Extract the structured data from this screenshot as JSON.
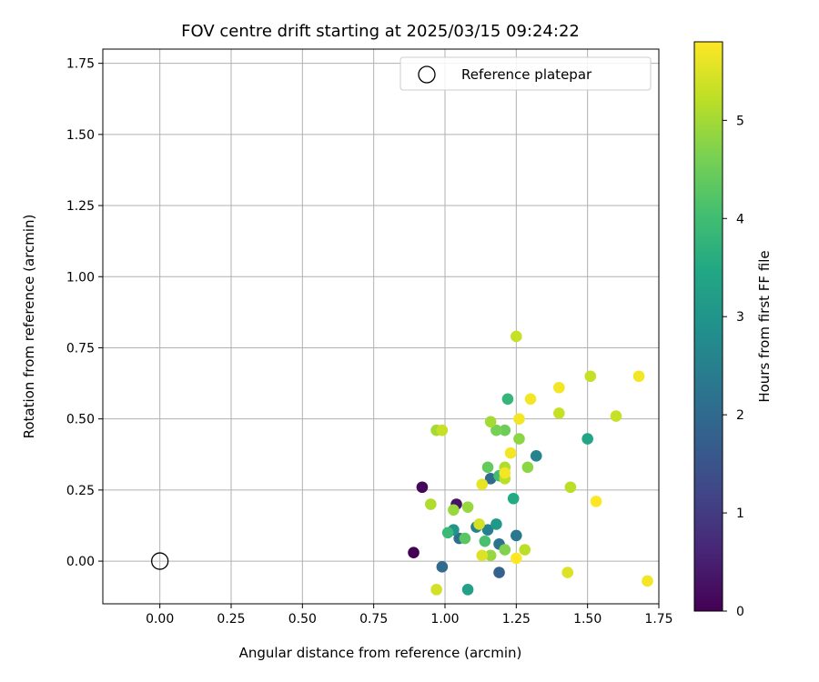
{
  "chart_data": {
    "type": "scatter",
    "title": "FOV centre drift starting at 2025/03/15 09:24:22",
    "xlabel": "Angular distance from reference (arcmin)",
    "ylabel": "Rotation from reference (arcmin)",
    "xlim": [
      -0.2,
      1.75
    ],
    "ylim": [
      -0.15,
      1.8
    ],
    "xticks": [
      "0.00",
      "0.25",
      "0.50",
      "0.75",
      "1.00",
      "1.25",
      "1.50",
      "1.75"
    ],
    "yticks": [
      "0.00",
      "0.25",
      "0.50",
      "0.75",
      "1.00",
      "1.25",
      "1.50",
      "1.75"
    ],
    "grid": true,
    "legend": {
      "placement": "top-right",
      "entries": [
        "Reference platepar"
      ]
    },
    "reference_point": {
      "x": 0.0,
      "y": 0.0,
      "label": "Reference platepar"
    },
    "colorbar": {
      "label": "Hours from first FF file",
      "colormap": "viridis",
      "range": [
        0,
        5.8
      ],
      "ticks": [
        "0",
        "1",
        "2",
        "3",
        "4",
        "5"
      ]
    },
    "points": [
      {
        "x": 0.89,
        "y": 0.03,
        "h": 0.0
      },
      {
        "x": 0.92,
        "y": 0.26,
        "h": 0.1
      },
      {
        "x": 1.04,
        "y": 0.2,
        "h": 0.3
      },
      {
        "x": 1.19,
        "y": -0.04,
        "h": 1.8
      },
      {
        "x": 0.99,
        "y": -0.02,
        "h": 2.0
      },
      {
        "x": 1.05,
        "y": 0.08,
        "h": 2.1
      },
      {
        "x": 1.16,
        "y": 0.29,
        "h": 2.0
      },
      {
        "x": 1.19,
        "y": 0.06,
        "h": 2.2
      },
      {
        "x": 1.25,
        "y": 0.09,
        "h": 2.3
      },
      {
        "x": 1.11,
        "y": 0.12,
        "h": 2.5
      },
      {
        "x": 1.15,
        "y": 0.11,
        "h": 2.5
      },
      {
        "x": 1.32,
        "y": 0.37,
        "h": 2.6
      },
      {
        "x": 1.03,
        "y": 0.11,
        "h": 3.0
      },
      {
        "x": 1.18,
        "y": 0.13,
        "h": 3.1
      },
      {
        "x": 1.08,
        "y": -0.1,
        "h": 3.3
      },
      {
        "x": 1.5,
        "y": 0.43,
        "h": 3.4
      },
      {
        "x": 1.24,
        "y": 0.22,
        "h": 3.5
      },
      {
        "x": 1.22,
        "y": 0.57,
        "h": 3.8
      },
      {
        "x": 1.01,
        "y": 0.1,
        "h": 3.9
      },
      {
        "x": 1.19,
        "y": 0.3,
        "h": 4.0
      },
      {
        "x": 1.14,
        "y": 0.07,
        "h": 4.1
      },
      {
        "x": 1.07,
        "y": 0.08,
        "h": 4.3
      },
      {
        "x": 1.15,
        "y": 0.33,
        "h": 4.4
      },
      {
        "x": 1.21,
        "y": 0.46,
        "h": 4.5
      },
      {
        "x": 1.18,
        "y": 0.46,
        "h": 4.6
      },
      {
        "x": 1.26,
        "y": 0.43,
        "h": 4.8
      },
      {
        "x": 1.29,
        "y": 0.33,
        "h": 4.8
      },
      {
        "x": 1.21,
        "y": 0.04,
        "h": 4.7
      },
      {
        "x": 1.16,
        "y": 0.02,
        "h": 4.9
      },
      {
        "x": 1.03,
        "y": 0.18,
        "h": 4.9
      },
      {
        "x": 1.08,
        "y": 0.19,
        "h": 4.9
      },
      {
        "x": 1.16,
        "y": 0.49,
        "h": 5.0
      },
      {
        "x": 0.97,
        "y": 0.46,
        "h": 5.0
      },
      {
        "x": 0.95,
        "y": 0.2,
        "h": 5.1
      },
      {
        "x": 1.21,
        "y": 0.33,
        "h": 5.1
      },
      {
        "x": 1.21,
        "y": 0.29,
        "h": 5.2
      },
      {
        "x": 1.28,
        "y": 0.04,
        "h": 5.2
      },
      {
        "x": 1.44,
        "y": 0.26,
        "h": 5.2
      },
      {
        "x": 1.4,
        "y": 0.52,
        "h": 5.3
      },
      {
        "x": 1.51,
        "y": 0.65,
        "h": 5.3
      },
      {
        "x": 1.6,
        "y": 0.51,
        "h": 5.3
      },
      {
        "x": 1.25,
        "y": 0.79,
        "h": 5.3
      },
      {
        "x": 0.99,
        "y": 0.46,
        "h": 5.3
      },
      {
        "x": 0.97,
        "y": -0.1,
        "h": 5.4
      },
      {
        "x": 1.12,
        "y": 0.13,
        "h": 5.4
      },
      {
        "x": 1.13,
        "y": 0.02,
        "h": 5.5
      },
      {
        "x": 1.43,
        "y": -0.04,
        "h": 5.5
      },
      {
        "x": 1.13,
        "y": 0.27,
        "h": 5.6
      },
      {
        "x": 1.21,
        "y": 0.31,
        "h": 5.7
      },
      {
        "x": 1.23,
        "y": 0.38,
        "h": 5.7
      },
      {
        "x": 1.26,
        "y": 0.5,
        "h": 5.7
      },
      {
        "x": 1.3,
        "y": 0.57,
        "h": 5.7
      },
      {
        "x": 1.4,
        "y": 0.61,
        "h": 5.7
      },
      {
        "x": 1.68,
        "y": 0.65,
        "h": 5.7
      },
      {
        "x": 1.53,
        "y": 0.21,
        "h": 5.8
      },
      {
        "x": 1.25,
        "y": 0.01,
        "h": 5.8
      },
      {
        "x": 1.71,
        "y": -0.07,
        "h": 5.7
      }
    ]
  }
}
